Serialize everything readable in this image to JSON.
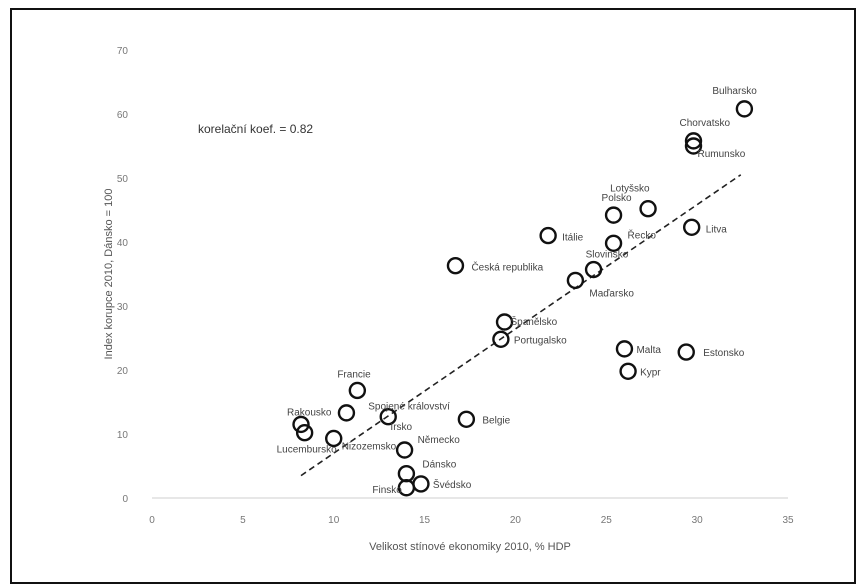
{
  "chart_data": {
    "type": "scatter",
    "title": "",
    "xlabel": "Velikost stínové ekonomiky 2010, % HDP",
    "ylabel": "Index korupce 2010, Dánsko = 100",
    "xlim": [
      0,
      35
    ],
    "ylim": [
      0,
      70
    ],
    "x_ticks": [
      "0",
      "5",
      "10",
      "15",
      "20",
      "25",
      "30",
      "35"
    ],
    "y_ticks": [
      "0",
      "10",
      "20",
      "30",
      "40",
      "50",
      "60",
      "70"
    ],
    "annotation": "korelační koef. = 0.82",
    "grid": false,
    "legend": "none",
    "trendline": {
      "style": "dashed",
      "x": [
        8.2,
        32.4
      ],
      "y": [
        3.5,
        50.5
      ]
    },
    "points": [
      {
        "label": "Bulharsko",
        "x": 32.6,
        "y": 60.8
      },
      {
        "label": "Chorvatsko",
        "x": 29.8,
        "y": 55.8
      },
      {
        "label": "Rumunsko",
        "x": 29.8,
        "y": 55.0
      },
      {
        "label": "Lotyšsko",
        "x": 27.3,
        "y": 45.2
      },
      {
        "label": "Polsko",
        "x": 25.4,
        "y": 44.2
      },
      {
        "label": "Litva",
        "x": 29.7,
        "y": 42.3
      },
      {
        "label": "Řecko",
        "x": 25.4,
        "y": 39.8
      },
      {
        "label": "Itálie",
        "x": 21.8,
        "y": 41.0
      },
      {
        "label": "Česká republika",
        "x": 16.7,
        "y": 36.3
      },
      {
        "label": "Slovinsko",
        "x": 24.3,
        "y": 35.7
      },
      {
        "label": "Maďarsko",
        "x": 23.3,
        "y": 34.0
      },
      {
        "label": "Španělsko",
        "x": 19.4,
        "y": 27.5
      },
      {
        "label": "Portugalsko",
        "x": 19.2,
        "y": 24.8
      },
      {
        "label": "Malta",
        "x": 26.0,
        "y": 23.3
      },
      {
        "label": "Estonsko",
        "x": 29.4,
        "y": 22.8
      },
      {
        "label": "Kypr",
        "x": 26.2,
        "y": 19.8
      },
      {
        "label": "Francie",
        "x": 11.3,
        "y": 16.8
      },
      {
        "label": "Spojené království",
        "x": 13.0,
        "y": 12.7
      },
      {
        "label": "Belgie",
        "x": 17.3,
        "y": 12.3
      },
      {
        "label": "Rakousko",
        "x": 8.2,
        "y": 11.5
      },
      {
        "label": "Irsko",
        "x": 10.7,
        "y": 13.3
      },
      {
        "label": "Lucembursko",
        "x": 8.4,
        "y": 10.2
      },
      {
        "label": "Nizozemsko",
        "x": 10.0,
        "y": 9.3
      },
      {
        "label": "Německo",
        "x": 13.9,
        "y": 7.5
      },
      {
        "label": "Dánsko",
        "x": 14.0,
        "y": 3.8
      },
      {
        "label": "Švédsko",
        "x": 14.8,
        "y": 2.2
      },
      {
        "label": "Finsko",
        "x": 14.0,
        "y": 1.6
      }
    ]
  }
}
